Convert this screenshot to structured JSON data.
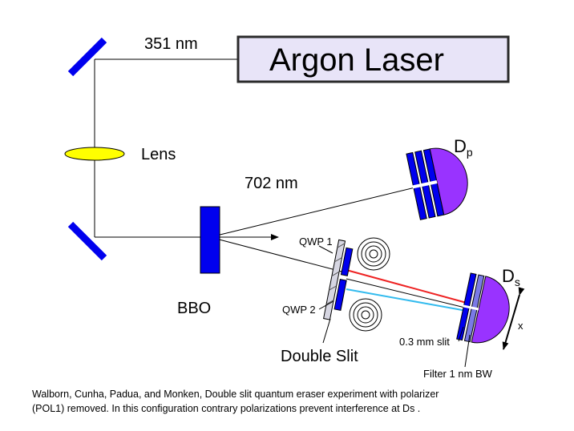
{
  "labels": {
    "wavelength_pump": "351 nm",
    "laser": "Argon Laser",
    "lens": "Lens",
    "wavelength_downconverted": "702 nm",
    "detector_p_base": "D",
    "detector_p_sub": "p",
    "detector_s_base": "D",
    "detector_s_sub": "s",
    "bbo": "BBO",
    "qwp1": "QWP 1",
    "qwp2": "QWP 2",
    "double_slit": "Double Slit",
    "slit": "0.3 mm slit",
    "filter": "Filter 1 nm BW",
    "scan_axis": "x"
  },
  "caption": {
    "line1": "Walborn, Cunha, Padua, and Monken, Double slit quantum eraser experiment with polarizer",
    "line2": "(POL1) removed. In this configuration contrary polarizations prevent interference at Ds ."
  },
  "colors": {
    "optic_blue": "#0000ee",
    "lens_yellow": "#ffff00",
    "detector_purple": "#9933ff",
    "laser_box_fill": "#e8e4f8",
    "laser_box_border": "#2a2a2a",
    "ray_red": "#ee2222",
    "ray_cyan": "#33bbee"
  }
}
